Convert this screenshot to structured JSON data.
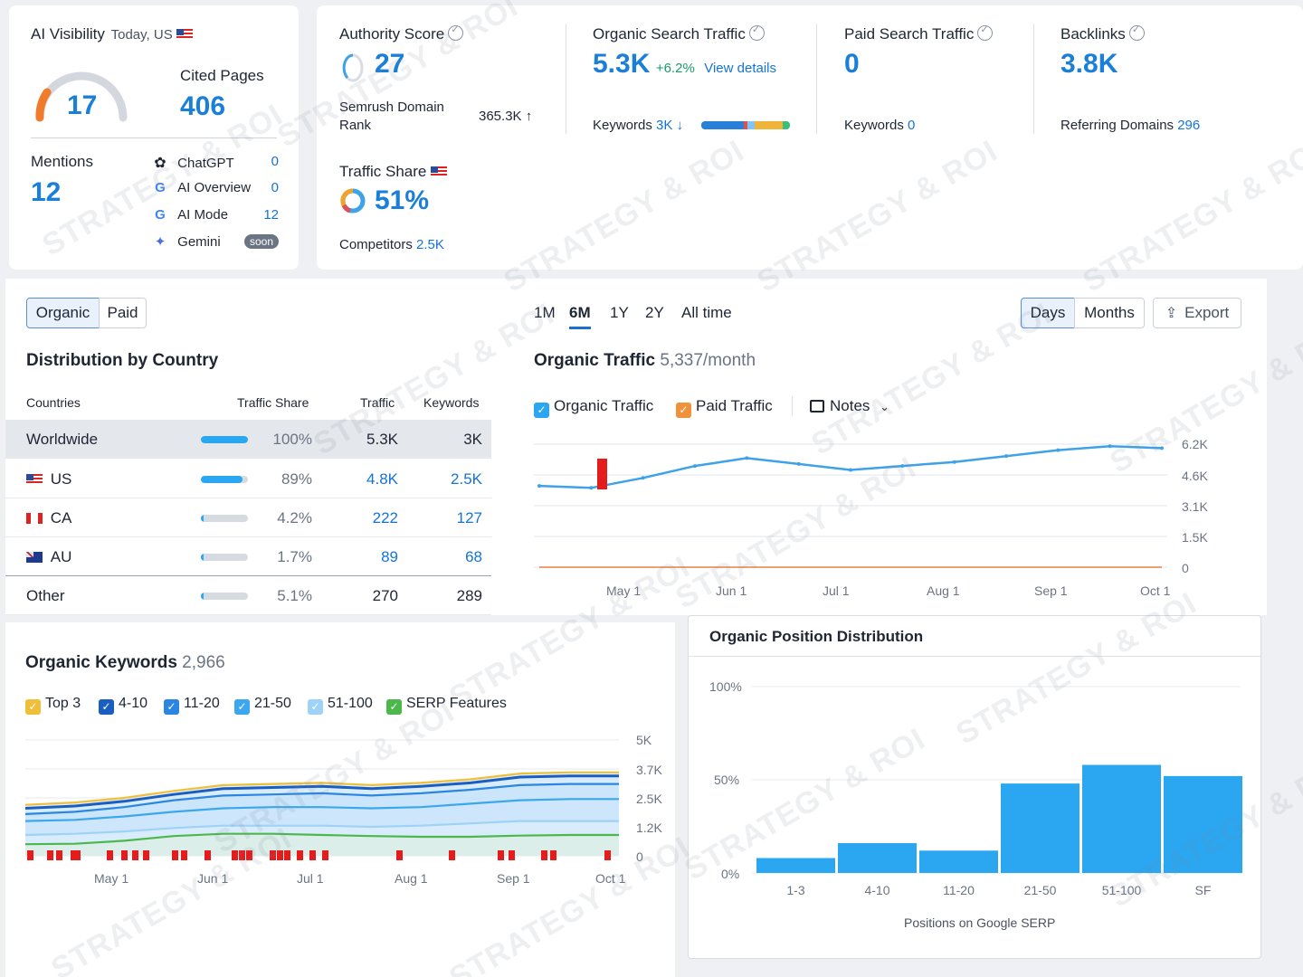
{
  "ai_visibility": {
    "title": "AI Visibility",
    "context": "Today, US",
    "score": "17",
    "cited_label": "Cited Pages",
    "cited_value": "406",
    "mentions_label": "Mentions",
    "mentions_value": "12",
    "sources": [
      {
        "name": "ChatGPT",
        "value": "0",
        "icon": "chatgpt-icon"
      },
      {
        "name": "AI Overview",
        "value": "0",
        "icon": "google-icon"
      },
      {
        "name": "AI Mode",
        "value": "12",
        "icon": "google-icon"
      },
      {
        "name": "Gemini",
        "value": "soon",
        "icon": "gemini-icon"
      }
    ]
  },
  "metrics": {
    "authority": {
      "label": "Authority Score",
      "value": "27",
      "rank_label": "Semrush Domain Rank",
      "rank_value": "365.3K ↑"
    },
    "traffic_share": {
      "label": "Traffic Share",
      "value": "51%",
      "competitors_label": "Competitors",
      "competitors_value": "2.5K"
    },
    "organic": {
      "label": "Organic Search Traffic",
      "value": "5.3K",
      "change": "+6.2%",
      "link": "View details",
      "keywords_label": "Keywords",
      "keywords_value": "3K ↓"
    },
    "paid": {
      "label": "Paid Search Traffic",
      "value": "0",
      "keywords_label": "Keywords",
      "keywords_value": "0"
    },
    "backlinks": {
      "label": "Backlinks",
      "value": "3.8K",
      "ref_label": "Referring Domains",
      "ref_value": "296"
    }
  },
  "toggle": {
    "organic": "Organic",
    "paid": "Paid"
  },
  "distribution": {
    "title": "Distribution by Country",
    "headers": {
      "country": "Countries",
      "share": "Traffic Share",
      "traffic": "Traffic",
      "keywords": "Keywords"
    },
    "rows": [
      {
        "country": "Worldwide",
        "share": "100%",
        "traffic": "5.3K",
        "keywords": "3K",
        "fill": 1.0
      },
      {
        "country": "US",
        "share": "89%",
        "traffic": "4.8K",
        "keywords": "2.5K",
        "fill": 0.89
      },
      {
        "country": "CA",
        "share": "4.2%",
        "traffic": "222",
        "keywords": "127",
        "fill": 0.042
      },
      {
        "country": "AU",
        "share": "1.7%",
        "traffic": "89",
        "keywords": "68",
        "fill": 0.017
      },
      {
        "country": "Other",
        "share": "5.1%",
        "traffic": "270",
        "keywords": "289",
        "fill": 0.051
      }
    ]
  },
  "periods": [
    "1M",
    "6M",
    "1Y",
    "2Y",
    "All time"
  ],
  "view": {
    "days": "Days",
    "months": "Months",
    "export": "Export"
  },
  "traffic_chart": {
    "title": "Organic Traffic",
    "subtitle": "5,337/month",
    "legend": {
      "organic": "Organic Traffic",
      "paid": "Paid Traffic",
      "notes": "Notes"
    },
    "yticks": [
      "6.2K",
      "4.6K",
      "3.1K",
      "1.5K",
      "0"
    ],
    "xticks": [
      "May 1",
      "Jun 1",
      "Jul 1",
      "Aug 1",
      "Sep 1",
      "Oct 1"
    ]
  },
  "keywords_chart": {
    "title": "Organic Keywords",
    "subtitle": "2,966",
    "legend": [
      "Top 3",
      "4-10",
      "11-20",
      "21-50",
      "51-100",
      "SERP Features"
    ],
    "yticks": [
      "5K",
      "3.7K",
      "2.5K",
      "1.2K",
      "0"
    ],
    "xticks": [
      "May 1",
      "Jun 1",
      "Jul 1",
      "Aug 1",
      "Sep 1",
      "Oct 1"
    ]
  },
  "position_chart": {
    "title": "Organic Position Distribution",
    "yticks": [
      "100%",
      "50%",
      "0%"
    ],
    "xlabel": "Positions on Google SERP"
  },
  "watermark": "STRATEGY & ROI",
  "colors": {
    "accent": "#1a7fd9",
    "bar": "#2aa7f0",
    "line": "#3ea2e8"
  },
  "chart_data": [
    {
      "type": "line",
      "title": "Organic Traffic",
      "x": [
        "Apr 15",
        "May 1",
        "May 15",
        "Jun 1",
        "Jun 15",
        "Jul 1",
        "Jul 15",
        "Aug 1",
        "Aug 15",
        "Sep 1",
        "Sep 15",
        "Oct 1",
        "Oct 10"
      ],
      "series": [
        {
          "name": "Organic Traffic",
          "values": [
            4100,
            4000,
            4500,
            5100,
            5500,
            5200,
            4900,
            5100,
            5300,
            5600,
            5900,
            6100,
            6000
          ]
        },
        {
          "name": "Paid Traffic",
          "values": [
            0,
            0,
            0,
            0,
            0,
            0,
            0,
            0,
            0,
            0,
            0,
            0,
            0
          ]
        }
      ],
      "ylim": [
        0,
        6200
      ]
    },
    {
      "type": "area",
      "title": "Organic Keywords",
      "x": [
        "Apr 15",
        "May 1",
        "May 15",
        "Jun 1",
        "Jun 15",
        "Jul 1",
        "Jul 15",
        "Aug 1",
        "Aug 15",
        "Sep 1",
        "Sep 15",
        "Oct 1",
        "Oct 10"
      ],
      "series": [
        {
          "name": "Top 3",
          "values": [
            2200,
            2300,
            2500,
            2800,
            3050,
            3100,
            3150,
            3050,
            3150,
            3300,
            3550,
            3600,
            3600
          ]
        },
        {
          "name": "4-10",
          "values": [
            2050,
            2150,
            2350,
            2650,
            2900,
            2950,
            3000,
            2900,
            3000,
            3150,
            3400,
            3450,
            3450
          ]
        },
        {
          "name": "11-20",
          "values": [
            1800,
            1900,
            2100,
            2400,
            2600,
            2650,
            2700,
            2600,
            2700,
            2850,
            3050,
            3100,
            3100
          ]
        },
        {
          "name": "21-50",
          "values": [
            1500,
            1550,
            1700,
            1900,
            2050,
            2100,
            2100,
            2050,
            2100,
            2250,
            2400,
            2450,
            2450
          ]
        },
        {
          "name": "51-100",
          "values": [
            900,
            950,
            1050,
            1200,
            1300,
            1300,
            1300,
            1250,
            1300,
            1400,
            1500,
            1500,
            1500
          ]
        },
        {
          "name": "SERP Features",
          "values": [
            500,
            520,
            650,
            850,
            950,
            950,
            900,
            850,
            820,
            820,
            870,
            900,
            900
          ]
        }
      ],
      "ylim": [
        0,
        5000
      ]
    },
    {
      "type": "bar",
      "title": "Organic Position Distribution",
      "categories": [
        "1-3",
        "4-10",
        "11-20",
        "21-50",
        "51-100",
        "SF"
      ],
      "values": [
        8,
        16,
        12,
        48,
        58,
        52
      ],
      "ylim": [
        0,
        100
      ],
      "xlabel": "Positions on Google SERP"
    }
  ]
}
